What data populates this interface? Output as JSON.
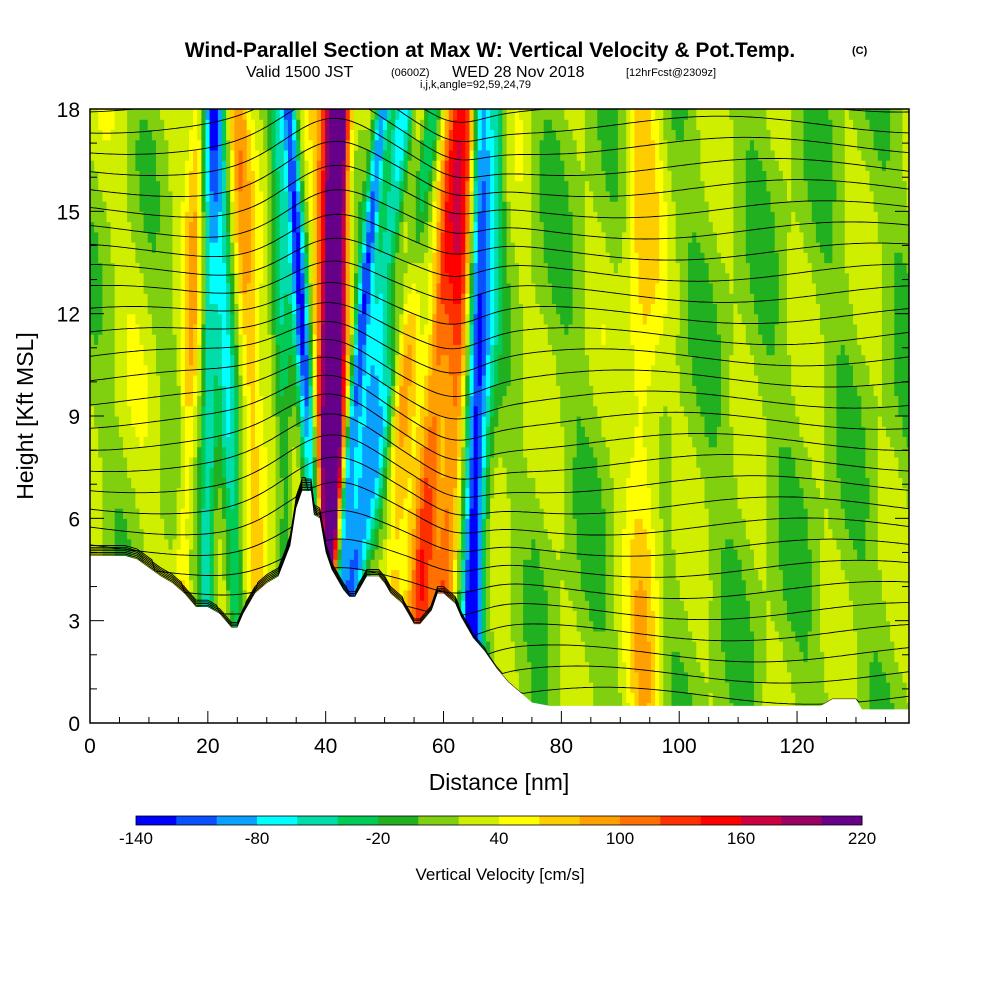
{
  "title": "Wind-Parallel Section at Max W: Vertical Velocity & Pot.Temp.",
  "copyright": "(C)",
  "subtitle": {
    "valid": "Valid 1500 JST",
    "utc": "(0600Z)",
    "date": "WED 28 Nov 2018",
    "forecast": "[12hrFcst@2309z]"
  },
  "indices": "i,j,k,angle=92,59,24,79",
  "colors": {
    "scale": [
      "#0000ff",
      "#0a50ff",
      "#0aa0ff",
      "#00ffff",
      "#00ddaa",
      "#00cc55",
      "#20b020",
      "#80d010",
      "#d0ee00",
      "#ffff00",
      "#ffcc00",
      "#ffa000",
      "#ff7000",
      "#ff3000",
      "#ff0000",
      "#cc0040",
      "#990066",
      "#660088"
    ],
    "terrain": "#ffffff",
    "contour": "#000000"
  },
  "chart_data": {
    "type": "heatmap",
    "xlabel": "Distance [nm]",
    "ylabel": "Height [Kft MSL]",
    "xlim": [
      0,
      139
    ],
    "ylim": [
      0,
      18
    ],
    "x_ticks": [
      "0",
      "20",
      "40",
      "60",
      "80",
      "100",
      "120"
    ],
    "y_ticks": [
      "0",
      "3",
      "6",
      "9",
      "12",
      "15",
      "18"
    ],
    "colorbar": {
      "label": "Vertical Velocity [cm/s]",
      "min": -140,
      "max": 220,
      "step": 20,
      "tick_labels": [
        "-140",
        "-80",
        "-20",
        "40",
        "100",
        "160",
        "220"
      ]
    },
    "terrain_height": [
      [
        0,
        4.9
      ],
      [
        6,
        4.9
      ],
      [
        8,
        4.8
      ],
      [
        12,
        4.3
      ],
      [
        14,
        4.1
      ],
      [
        16,
        3.8
      ],
      [
        18,
        3.4
      ],
      [
        20,
        3.4
      ],
      [
        22,
        3.2
      ],
      [
        24,
        2.8
      ],
      [
        25,
        2.8
      ],
      [
        26,
        3.2
      ],
      [
        28,
        3.8
      ],
      [
        30,
        4.1
      ],
      [
        32,
        4.3
      ],
      [
        34,
        5.2
      ],
      [
        35,
        6.3
      ],
      [
        36,
        6.8
      ],
      [
        37.5,
        6.8
      ],
      [
        38,
        6.1
      ],
      [
        39,
        6.0
      ],
      [
        40,
        5.0
      ],
      [
        41,
        4.5
      ],
      [
        42,
        4.2
      ],
      [
        43,
        3.9
      ],
      [
        44,
        3.7
      ],
      [
        45,
        3.7
      ],
      [
        46,
        4.0
      ],
      [
        47,
        4.3
      ],
      [
        49,
        4.3
      ],
      [
        50,
        4.1
      ],
      [
        51,
        3.8
      ],
      [
        53,
        3.5
      ],
      [
        54,
        3.2
      ],
      [
        55,
        2.9
      ],
      [
        56,
        2.9
      ],
      [
        58,
        3.3
      ],
      [
        59,
        3.8
      ],
      [
        60,
        3.8
      ],
      [
        62,
        3.5
      ],
      [
        63,
        3.1
      ],
      [
        65,
        2.5
      ],
      [
        67,
        2.1
      ],
      [
        69,
        1.6
      ],
      [
        71,
        1.2
      ],
      [
        73,
        0.9
      ],
      [
        75,
        0.6
      ],
      [
        78,
        0.5
      ],
      [
        124,
        0.5
      ],
      [
        126,
        0.7
      ],
      [
        130,
        0.7
      ],
      [
        131,
        0.4
      ],
      [
        139,
        0.4
      ]
    ],
    "vertical_velocity_features": [
      {
        "center_x": 41,
        "lean": 0.1,
        "value": 170,
        "width": 1.6
      },
      {
        "center_x": 40,
        "lean": 0.12,
        "value": 140,
        "width": 2.6
      },
      {
        "center_x": 38,
        "lean": -0.35,
        "value": -130,
        "width": 1.3
      },
      {
        "center_x": 43,
        "lean": 0.55,
        "value": -120,
        "width": 1.2
      },
      {
        "center_x": 45,
        "lean": 0.7,
        "value": -90,
        "width": 2.0
      },
      {
        "center_x": 47,
        "lean": 0.95,
        "value": -70,
        "width": 1.8
      },
      {
        "center_x": 57,
        "lean": 0.45,
        "value": 100,
        "width": 2.2
      },
      {
        "center_x": 61,
        "lean": 0.3,
        "value": 90,
        "width": 1.8
      },
      {
        "center_x": 52,
        "lean": 0.3,
        "value": 60,
        "width": 2.0
      },
      {
        "center_x": 65,
        "lean": 0.1,
        "value": -110,
        "width": 1.6
      },
      {
        "center_x": 66,
        "lean": 0.25,
        "value": -70,
        "width": 2.0
      },
      {
        "center_x": 28,
        "lean": -0.25,
        "value": 60,
        "width": 1.8
      },
      {
        "center_x": 24,
        "lean": -0.2,
        "value": -70,
        "width": 1.6
      },
      {
        "center_x": 20,
        "lean": 0.05,
        "value": -80,
        "width": 1.4
      },
      {
        "center_x": 33,
        "lean": -0.1,
        "value": -50,
        "width": 1.5
      },
      {
        "center_x": 94,
        "lean": -0.05,
        "value": 55,
        "width": 3.0
      },
      {
        "center_x": 16,
        "lean": 0.2,
        "value": 50,
        "width": 1.4
      }
    ],
    "theta_contours": {
      "count": 30,
      "base_height": 0.8,
      "spacing": 0.62,
      "perturbation_center_x": 41,
      "perturbation_amplitude": 1.2
    }
  }
}
